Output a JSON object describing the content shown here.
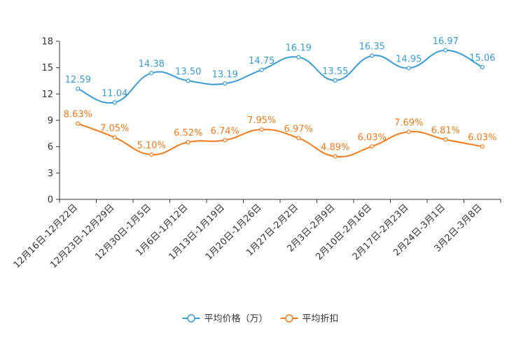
{
  "chart_data": {
    "type": "line",
    "title": "",
    "xlabel": "",
    "ylabel": "",
    "ylim": [
      0,
      18
    ],
    "yticks": [
      "0",
      "3",
      "6",
      "9",
      "12",
      "15",
      "18"
    ],
    "categories": [
      "12月16日-12月22日",
      "12月23日-12月29日",
      "12月30日-1月5日",
      "1月6日-1月12日",
      "1月13日-1月19日",
      "1月20日-1月26日",
      "1月27日-2月2日",
      "2月3日-2月9日",
      "2月10日-2月16日",
      "2月17日-2月23日",
      "2月24日-3月1日",
      "3月2日-3月8日"
    ],
    "series": [
      {
        "name": "平均价格（万）",
        "color": "#3a9bd5",
        "values": [
          12.59,
          11.04,
          14.38,
          13.5,
          13.19,
          14.75,
          16.19,
          13.55,
          16.35,
          14.95,
          16.97,
          15.06
        ],
        "labels": [
          "12.59",
          "11.04",
          "14.38",
          "13.50",
          "13.19",
          "14.75",
          "16.19",
          "13.55",
          "16.35",
          "14.95",
          "16.97",
          "15.06"
        ]
      },
      {
        "name": "平均折扣",
        "color": "#f07b1d",
        "values": [
          8.63,
          7.05,
          5.1,
          6.52,
          6.74,
          7.95,
          6.97,
          4.89,
          6.03,
          7.69,
          6.81,
          6.03
        ],
        "labels": [
          "8.63%",
          "7.05%",
          "5.10%",
          "6.52%",
          "6.74%",
          "7.95%",
          "6.97%",
          "4.89%",
          "6.03%",
          "7.69%",
          "6.81%",
          "6.03%"
        ]
      }
    ],
    "legend_position": "bottom-center"
  }
}
